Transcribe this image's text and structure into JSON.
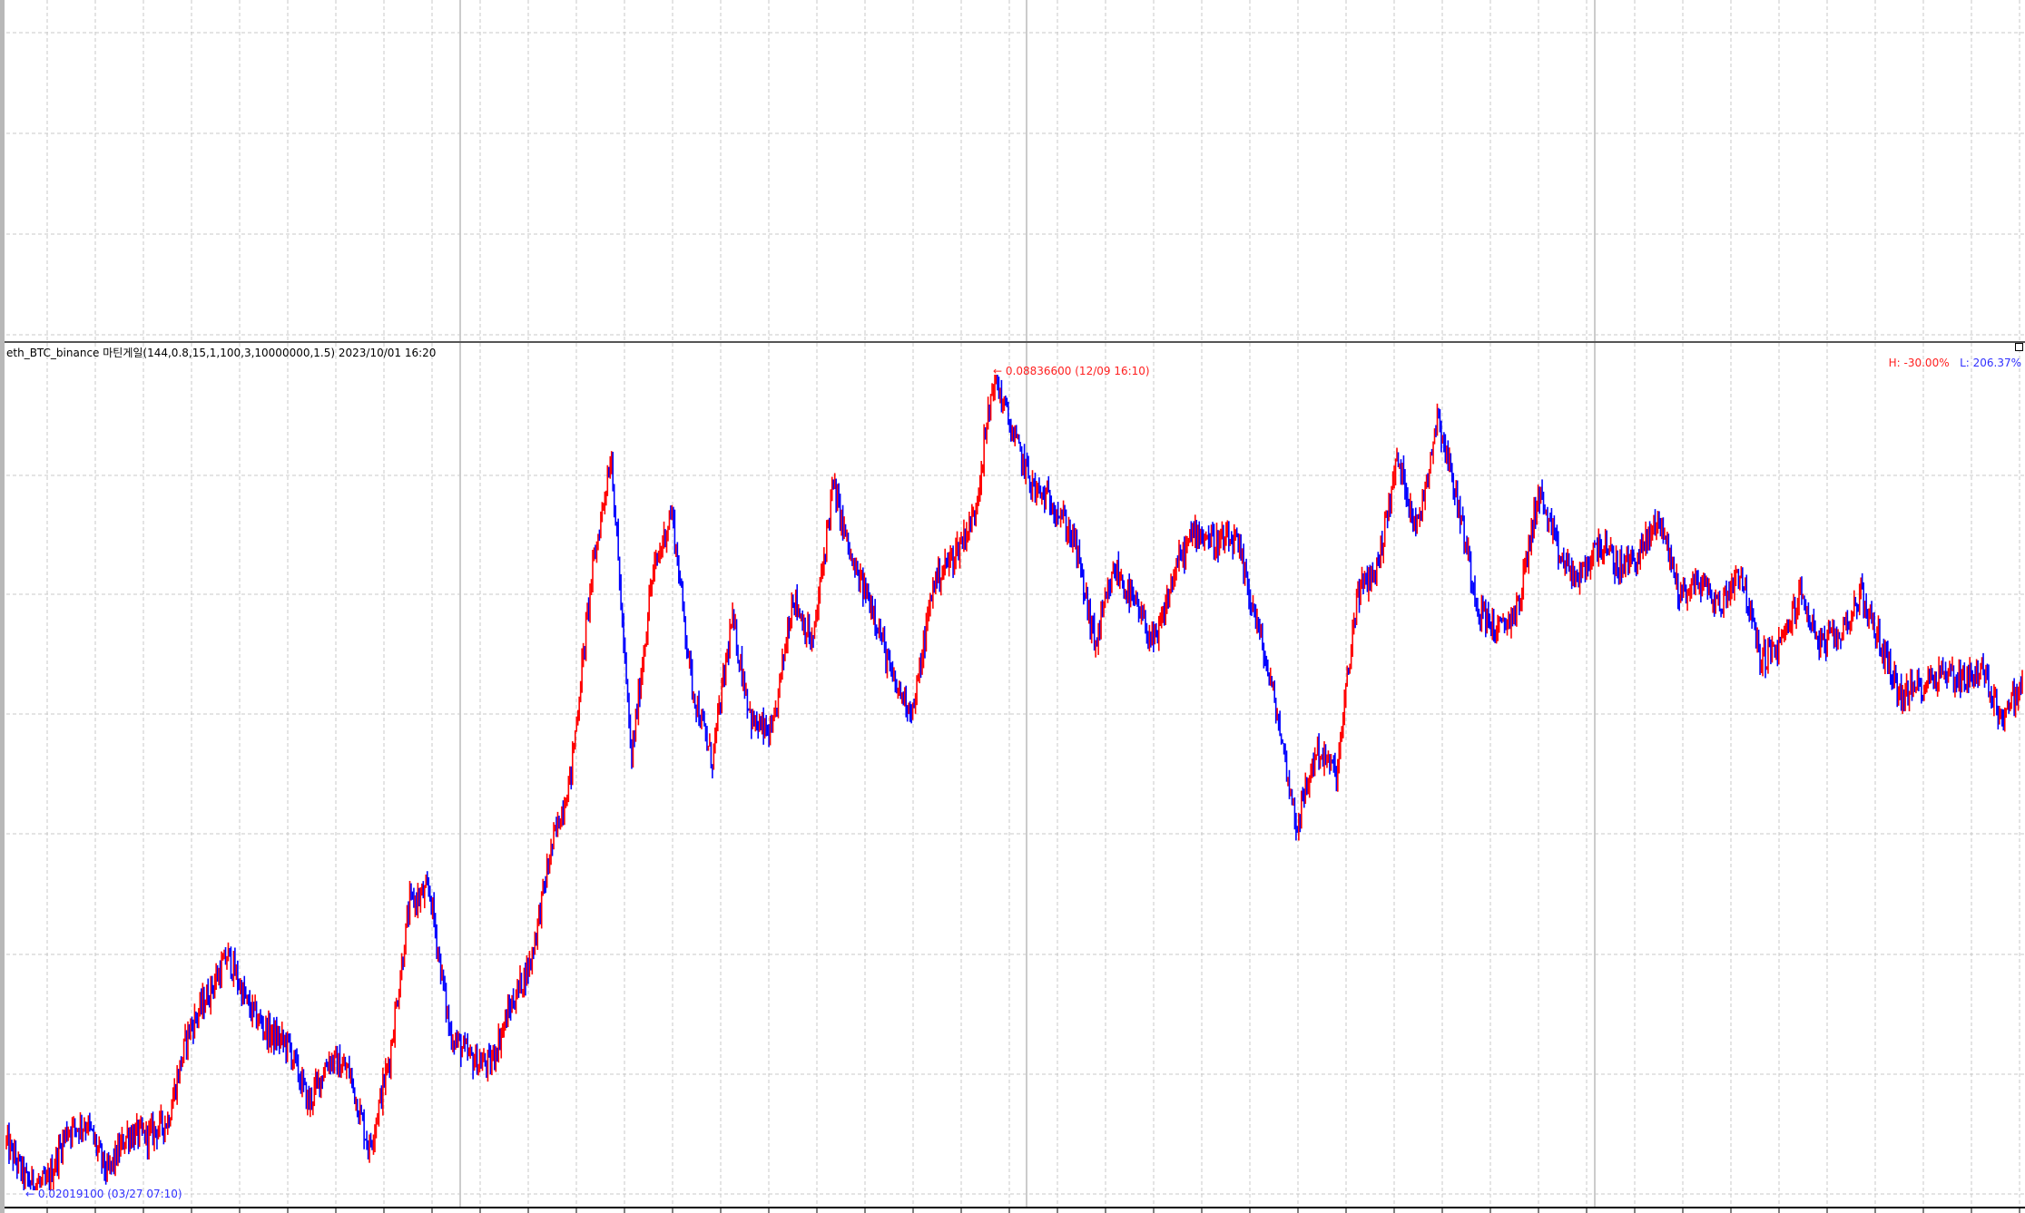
{
  "chart_data": {
    "type": "candlestick",
    "title": "eth_BTC_binance 마틴게일(144,0.8,15,1,100,3,10000000,1.5)  2023/10/01 16:20",
    "high_label": {
      "arrow": "←",
      "value": "0.08836600",
      "time": "(12/09 16:10)"
    },
    "low_label": {
      "arrow": "←",
      "value": "0.02019100",
      "time": "(03/27 07:10)"
    },
    "high_value": 0.088366,
    "low_value": 0.020191,
    "summary": {
      "h": "H: -30.00%",
      "l": "L: 206.37%"
    },
    "grid": true,
    "colors": {
      "up": "#ff0000",
      "down": "#0000ff",
      "high_text": "#ff2020",
      "low_text": "#3030ff",
      "grid": "#c8c8c8"
    },
    "price_path": [
      0.02418,
      0.02095,
      0.02062,
      0.02526,
      0.0258,
      0.02149,
      0.02494,
      0.02473,
      0.02602,
      0.03335,
      0.03659,
      0.03982,
      0.03551,
      0.03335,
      0.03227,
      0.02742,
      0.0312,
      0.03012,
      0.02365,
      0.0312,
      0.04414,
      0.04522,
      0.03335,
      0.0312,
      0.03066,
      0.03551,
      0.03929,
      0.04846,
      0.05493,
      0.07111,
      0.08189,
      0.05601,
      0.07111,
      0.07704,
      0.06248,
      0.05601,
      0.06787,
      0.05924,
      0.05816,
      0.07003,
      0.06571,
      0.0792,
      0.07219,
      0.06895,
      0.06248,
      0.06032,
      0.07111,
      0.07327,
      0.0765,
      0.08837,
      0.08297,
      0.07866,
      0.07758,
      0.07435,
      0.06571,
      0.07219,
      0.06895,
      0.06571,
      0.07219,
      0.07542,
      0.07435,
      0.07435,
      0.06787,
      0.06032,
      0.05061,
      0.05708,
      0.05493,
      0.07003,
      0.07219,
      0.08136,
      0.07542,
      0.08513,
      0.07758,
      0.06895,
      0.06679,
      0.06895,
      0.07866,
      0.07327,
      0.07111,
      0.07435,
      0.07219,
      0.07327,
      0.0765,
      0.07003,
      0.07111,
      0.06895,
      0.07219,
      0.06463,
      0.06571,
      0.07003,
      0.06571,
      0.06679,
      0.07003,
      0.06571,
      0.0614,
      0.06248,
      0.06356,
      0.06302,
      0.06356,
      0.05978,
      0.06248
    ]
  }
}
